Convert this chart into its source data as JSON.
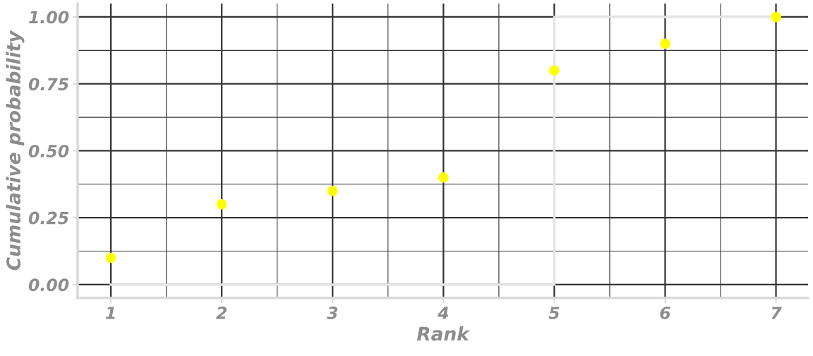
{
  "chart_data": {
    "type": "scatter",
    "xlabel": "Rank",
    "ylabel": "Cumulative probability",
    "x": [
      1,
      2,
      3,
      4,
      5,
      6,
      7
    ],
    "series": [
      {
        "type": "step",
        "color": "#e5e5e5",
        "marker": "none",
        "values": [
          0,
          0,
          0,
          0,
          1,
          1,
          1
        ]
      },
      {
        "color": "#ffff00",
        "marker": "circle",
        "values": [
          0.1,
          0.3,
          0.35,
          0.4,
          0.8,
          0.9,
          1.0
        ]
      }
    ],
    "xlim": [
      0.7,
      7.29
    ],
    "xticks": [
      1,
      2,
      3,
      4,
      5,
      6,
      7
    ],
    "ylim": [
      -0.05,
      1.05
    ],
    "yticks": [
      {
        "value": 0,
        "label": "0.00"
      },
      {
        "value": 0.25,
        "label": "0.25"
      },
      {
        "value": 0.5,
        "label": "0.50"
      },
      {
        "value": 0.75,
        "label": "0.75"
      },
      {
        "value": 1,
        "label": "1.00"
      }
    ],
    "grid": true
  }
}
